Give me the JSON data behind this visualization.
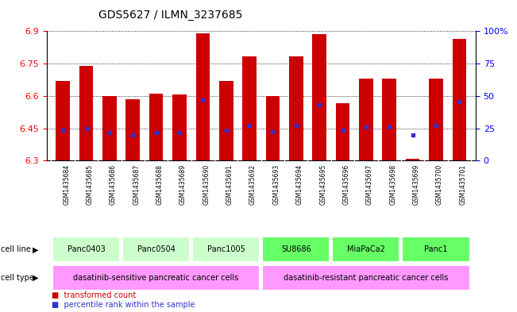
{
  "title": "GDS5627 / ILMN_3237685",
  "samples": [
    "GSM1435684",
    "GSM1435685",
    "GSM1435686",
    "GSM1435687",
    "GSM1435688",
    "GSM1435689",
    "GSM1435690",
    "GSM1435691",
    "GSM1435692",
    "GSM1435693",
    "GSM1435694",
    "GSM1435695",
    "GSM1435696",
    "GSM1435697",
    "GSM1435698",
    "GSM1435699",
    "GSM1435700",
    "GSM1435701"
  ],
  "bar_values": [
    6.67,
    6.74,
    6.6,
    6.585,
    6.61,
    6.605,
    6.89,
    6.67,
    6.785,
    6.6,
    6.785,
    6.885,
    6.565,
    6.68,
    6.68,
    6.31,
    6.68,
    6.865
  ],
  "blue_values": [
    6.44,
    6.45,
    6.43,
    6.42,
    6.43,
    6.43,
    6.58,
    6.44,
    6.465,
    6.435,
    6.465,
    6.56,
    6.44,
    6.455,
    6.455,
    6.42,
    6.465,
    6.575
  ],
  "ymin": 6.3,
  "ymax": 6.9,
  "yticks": [
    6.3,
    6.45,
    6.6,
    6.75,
    6.9
  ],
  "right_yticks": [
    0,
    25,
    50,
    75,
    100
  ],
  "right_ytick_labels": [
    "0",
    "25",
    "50",
    "75",
    "100%"
  ],
  "bar_color": "#cc0000",
  "blue_color": "#3333cc",
  "cell_lines": [
    {
      "label": "Panc0403",
      "start": 0,
      "end": 2,
      "color": "#ccffcc"
    },
    {
      "label": "Panc0504",
      "start": 3,
      "end": 5,
      "color": "#ccffcc"
    },
    {
      "label": "Panc1005",
      "start": 6,
      "end": 8,
      "color": "#ccffcc"
    },
    {
      "label": "SU8686",
      "start": 9,
      "end": 11,
      "color": "#66ff66"
    },
    {
      "label": "MiaPaCa2",
      "start": 12,
      "end": 14,
      "color": "#66ff66"
    },
    {
      "label": "Panc1",
      "start": 15,
      "end": 17,
      "color": "#66ff66"
    }
  ],
  "cell_types": [
    {
      "label": "dasatinib-sensitive pancreatic cancer cells",
      "start": 0,
      "end": 8,
      "color": "#ff99ff"
    },
    {
      "label": "dasatinib-resistant pancreatic cancer cells",
      "start": 9,
      "end": 17,
      "color": "#ff99ff"
    }
  ],
  "legend_items": [
    {
      "label": "transformed count",
      "color": "#cc0000"
    },
    {
      "label": "percentile rank within the sample",
      "color": "#3333cc"
    }
  ],
  "bar_width": 0.6,
  "grid_color": "black",
  "xlim_left": -0.7,
  "xlim_right": 17.7
}
